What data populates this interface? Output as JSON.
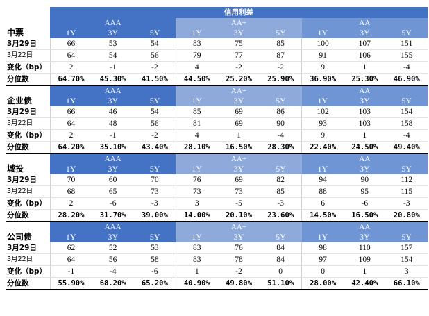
{
  "title": "信用利差",
  "group_labels": [
    "AAA",
    "AA+",
    "AA"
  ],
  "tenors": [
    "1Y",
    "3Y",
    "5Y"
  ],
  "row_labels": {
    "current": "3月29日",
    "prior": "3月22日",
    "change": "变化（bp）",
    "percentile": "分位数"
  },
  "sections": [
    {
      "name": "中票",
      "current": [
        "66",
        "53",
        "54",
        "83",
        "75",
        "85",
        "100",
        "107",
        "151"
      ],
      "prior": [
        "64",
        "54",
        "56",
        "79",
        "77",
        "87",
        "91",
        "106",
        "155"
      ],
      "change": [
        "2",
        "-1",
        "-2",
        "4",
        "-2",
        "-2",
        "9",
        "1",
        "-4"
      ],
      "percentile": [
        "64.70%",
        "45.30%",
        "41.50%",
        "44.50%",
        "25.20%",
        "25.90%",
        "36.90%",
        "25.30%",
        "46.90%"
      ]
    },
    {
      "name": "企业债",
      "current": [
        "66",
        "46",
        "54",
        "85",
        "69",
        "86",
        "102",
        "103",
        "154"
      ],
      "prior": [
        "64",
        "48",
        "56",
        "81",
        "69",
        "90",
        "93",
        "103",
        "158"
      ],
      "change": [
        "2",
        "-1",
        "-2",
        "4",
        "1",
        "-4",
        "9",
        "1",
        "-4"
      ],
      "percentile": [
        "64.20%",
        "35.10%",
        "43.40%",
        "28.10%",
        "16.50%",
        "28.30%",
        "22.40%",
        "24.50%",
        "49.40%"
      ]
    },
    {
      "name": "城投",
      "current": [
        "70",
        "60",
        "70",
        "76",
        "69",
        "82",
        "94",
        "90",
        "112"
      ],
      "prior": [
        "68",
        "65",
        "73",
        "73",
        "73",
        "85",
        "88",
        "95",
        "115"
      ],
      "change": [
        "2",
        "-6",
        "-3",
        "3",
        "-5",
        "-3",
        "6",
        "-6",
        "-3"
      ],
      "percentile": [
        "28.20%",
        "31.70%",
        "39.00%",
        "14.00%",
        "20.10%",
        "23.60%",
        "14.50%",
        "16.50%",
        "20.80%"
      ]
    },
    {
      "name": "公司债",
      "current": [
        "62",
        "52",
        "53",
        "83",
        "76",
        "84",
        "98",
        "110",
        "157"
      ],
      "prior": [
        "64",
        "56",
        "58",
        "83",
        "78",
        "84",
        "97",
        "109",
        "154"
      ],
      "change": [
        "-1",
        "-4",
        "-6",
        "1",
        "-2",
        "0",
        "0",
        "1",
        "3"
      ],
      "percentile": [
        "55.90%",
        "68.20%",
        "65.20%",
        "40.90%",
        "49.80%",
        "51.10%",
        "28.00%",
        "42.40%",
        "66.10%"
      ]
    }
  ]
}
